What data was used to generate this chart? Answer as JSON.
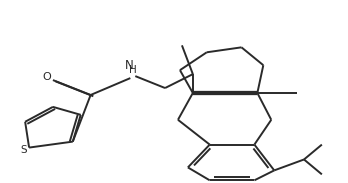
{
  "bg_color": "#ffffff",
  "line_color": "#2a2a2a",
  "line_width": 1.4,
  "figsize": [
    3.48,
    1.83
  ],
  "dpi": 100,
  "xlim": [
    0,
    348
  ],
  "ylim": [
    0,
    183
  ]
}
